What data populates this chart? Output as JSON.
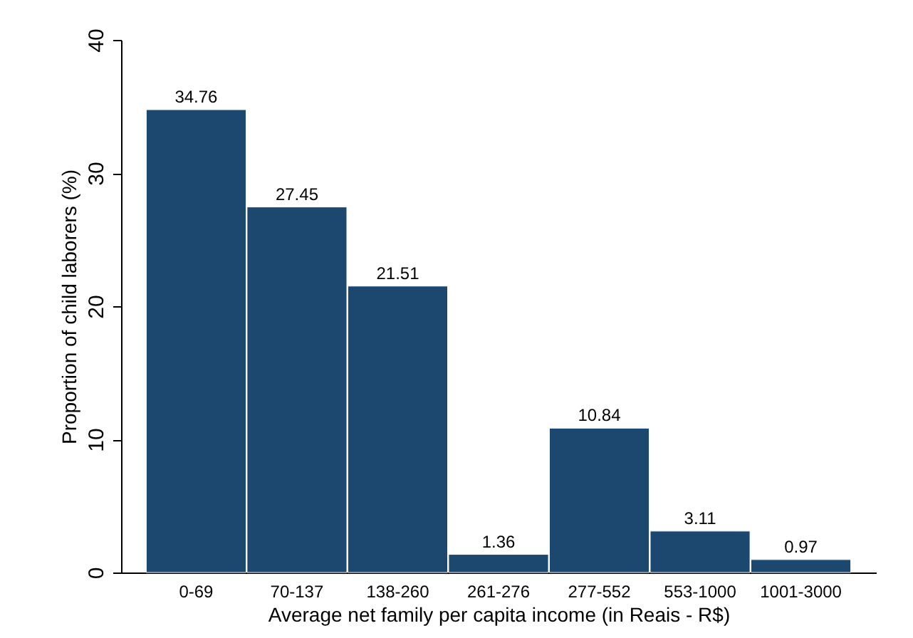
{
  "chart_data": {
    "type": "bar",
    "xlabel": "Average net family per capita income (in Reais - R$)",
    "ylabel": "Proportion of child laborers (%)",
    "categories": [
      "0-69",
      "70-137",
      "138-260",
      "261-276",
      "277-552",
      "553-1000",
      "1001-3000"
    ],
    "values": [
      34.76,
      27.45,
      21.51,
      1.36,
      10.84,
      3.11,
      0.97
    ],
    "color": "#1c4870",
    "ylim": [
      0,
      40
    ],
    "yticks": [
      0,
      10,
      20,
      30,
      40
    ],
    "grid": false,
    "data_labels": true
  }
}
